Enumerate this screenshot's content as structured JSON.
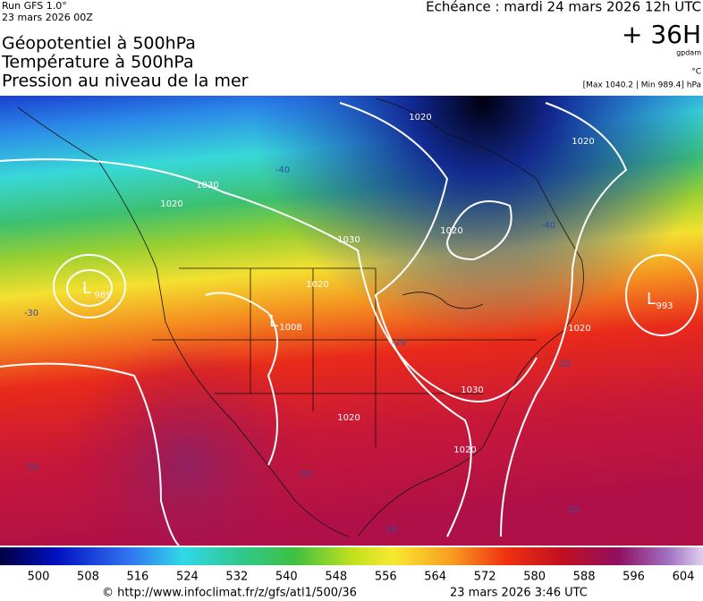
{
  "header": {
    "run": "Run GFS 1.0°",
    "run_date": "23 mars 2026 00Z",
    "title_lines": [
      "Géopotentiel à 500hPa",
      "Température à 500hPa",
      "Pression au niveau de la mer"
    ],
    "valid": "Echéance : mardi 24 mars 2026 12h UTC",
    "lead": "+ 36H",
    "unit_geo": "gpdam",
    "unit_temp": "°C",
    "pressure_range": "[Max 1040.2 | Min 989.4] hPa"
  },
  "map_labels": [
    "1020",
    "1020",
    "1030",
    "1020",
    "-40",
    "1030",
    "1020",
    "-40",
    "L",
    "989",
    "L",
    "993",
    "1020",
    "L",
    "1008",
    "-20",
    "1030",
    "1020",
    "1020",
    "-20",
    "1020",
    "-30",
    "-10",
    "-10",
    "10",
    "-10"
  ],
  "colorbar": {
    "ticks": [
      500,
      508,
      516,
      524,
      532,
      540,
      548,
      556,
      564,
      572,
      580,
      588,
      596,
      604
    ]
  },
  "footer": {
    "source": "© http://www.infoclimat.fr/z/gfs/atl1/500/36",
    "generated": "23 mars 2026  3:46 UTC"
  }
}
